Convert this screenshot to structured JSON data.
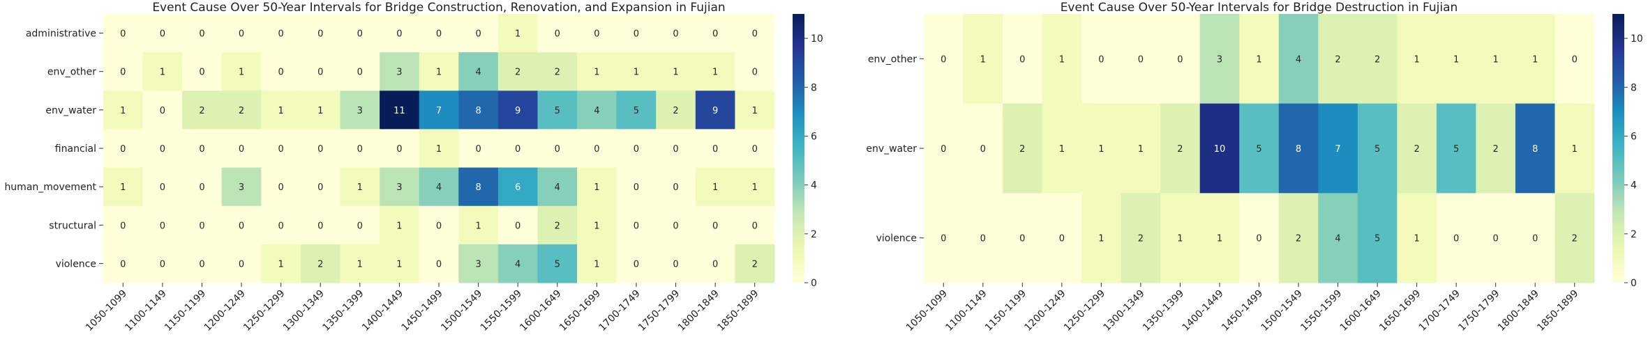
{
  "chart_data": [
    {
      "type": "heatmap",
      "title": "Event Cause Over 50-Year Intervals for Bridge Construction, Renovation, and Expansion in Fujian",
      "xlabel": "",
      "ylabel": "",
      "x_categories": [
        "1050-1099",
        "1100-1149",
        "1150-1199",
        "1200-1249",
        "1250-1299",
        "1300-1349",
        "1350-1399",
        "1400-1449",
        "1450-1499",
        "1500-1549",
        "1550-1599",
        "1600-1649",
        "1650-1699",
        "1700-1749",
        "1750-1799",
        "1800-1849",
        "1850-1899"
      ],
      "y_categories": [
        "administrative",
        "env_other",
        "env_water",
        "financial",
        "human_movement",
        "structural",
        "violence"
      ],
      "values": [
        [
          0,
          0,
          0,
          0,
          0,
          0,
          0,
          0,
          0,
          0,
          1,
          0,
          0,
          0,
          0,
          0,
          0
        ],
        [
          0,
          1,
          0,
          1,
          0,
          0,
          0,
          3,
          1,
          4,
          2,
          2,
          1,
          1,
          1,
          1,
          0
        ],
        [
          1,
          0,
          2,
          2,
          1,
          1,
          3,
          11,
          7,
          8,
          9,
          5,
          4,
          5,
          2,
          9,
          1
        ],
        [
          0,
          0,
          0,
          0,
          0,
          0,
          0,
          0,
          1,
          0,
          0,
          0,
          0,
          0,
          0,
          0,
          0
        ],
        [
          1,
          0,
          0,
          3,
          0,
          0,
          1,
          3,
          4,
          8,
          6,
          4,
          1,
          0,
          0,
          1,
          1
        ],
        [
          0,
          0,
          0,
          0,
          0,
          0,
          0,
          1,
          0,
          1,
          0,
          2,
          1,
          0,
          0,
          0,
          0
        ],
        [
          0,
          0,
          0,
          0,
          1,
          2,
          1,
          1,
          0,
          3,
          4,
          5,
          1,
          0,
          0,
          0,
          2
        ]
      ],
      "colorscale": "YlGnBu",
      "vmin": 0,
      "vmax": 11,
      "colorbar_ticks": [
        0,
        2,
        4,
        6,
        8,
        10
      ],
      "annotated": true
    },
    {
      "type": "heatmap",
      "title": "Event Cause Over 50-Year Intervals for Bridge Destruction in Fujian",
      "xlabel": "",
      "ylabel": "",
      "x_categories": [
        "1050-1099",
        "1100-1149",
        "1150-1199",
        "1200-1249",
        "1250-1299",
        "1300-1349",
        "1350-1399",
        "1400-1449",
        "1450-1499",
        "1500-1549",
        "1550-1599",
        "1600-1649",
        "1650-1699",
        "1700-1749",
        "1750-1799",
        "1800-1849",
        "1850-1899"
      ],
      "y_categories": [
        "env_other",
        "env_water",
        "violence"
      ],
      "values": [
        [
          0,
          1,
          0,
          1,
          0,
          0,
          0,
          3,
          1,
          4,
          2,
          2,
          1,
          1,
          1,
          1,
          0
        ],
        [
          0,
          0,
          2,
          1,
          1,
          1,
          2,
          10,
          5,
          8,
          7,
          5,
          2,
          5,
          2,
          8,
          1
        ],
        [
          0,
          0,
          0,
          0,
          1,
          2,
          1,
          1,
          0,
          2,
          4,
          5,
          1,
          0,
          0,
          0,
          2
        ]
      ],
      "colorscale": "YlGnBu",
      "vmin": 0,
      "vmax": 11,
      "colorbar_ticks": [
        0,
        2,
        4,
        6,
        8,
        10
      ],
      "annotated": true
    }
  ]
}
